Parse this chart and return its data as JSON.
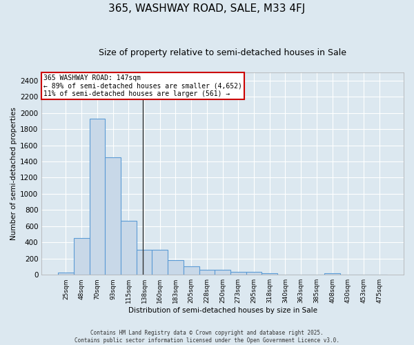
{
  "title": "365, WASHWAY ROAD, SALE, M33 4FJ",
  "subtitle": "Size of property relative to semi-detached houses in Sale",
  "xlabel": "Distribution of semi-detached houses by size in Sale",
  "ylabel": "Number of semi-detached properties",
  "categories": [
    "25sqm",
    "48sqm",
    "70sqm",
    "93sqm",
    "115sqm",
    "138sqm",
    "160sqm",
    "183sqm",
    "205sqm",
    "228sqm",
    "250sqm",
    "273sqm",
    "295sqm",
    "318sqm",
    "340sqm",
    "363sqm",
    "385sqm",
    "408sqm",
    "430sqm",
    "453sqm",
    "475sqm"
  ],
  "values": [
    25,
    455,
    1930,
    1455,
    670,
    305,
    305,
    180,
    100,
    65,
    60,
    35,
    35,
    20,
    0,
    0,
    0,
    20,
    0,
    0,
    0
  ],
  "bar_color": "#c8d8e8",
  "bar_edge_color": "#5b9bd5",
  "annotation_text_line1": "365 WASHWAY ROAD: 147sqm",
  "annotation_text_line2": "← 89% of semi-detached houses are smaller (4,652)",
  "annotation_text_line3": "11% of semi-detached houses are larger (561) →",
  "annotation_box_color": "#ffffff",
  "annotation_box_edge": "#cc0000",
  "vline_color": "#333333",
  "background_color": "#dce8f0",
  "grid_color": "#ffffff",
  "ylim": [
    0,
    2500
  ],
  "yticks": [
    0,
    200,
    400,
    600,
    800,
    1000,
    1200,
    1400,
    1600,
    1800,
    2000,
    2200,
    2400
  ],
  "footer": "Contains HM Land Registry data © Crown copyright and database right 2025.\nContains public sector information licensed under the Open Government Licence v3.0.",
  "bar_width": 1.0,
  "title_fontsize": 11,
  "subtitle_fontsize": 9
}
